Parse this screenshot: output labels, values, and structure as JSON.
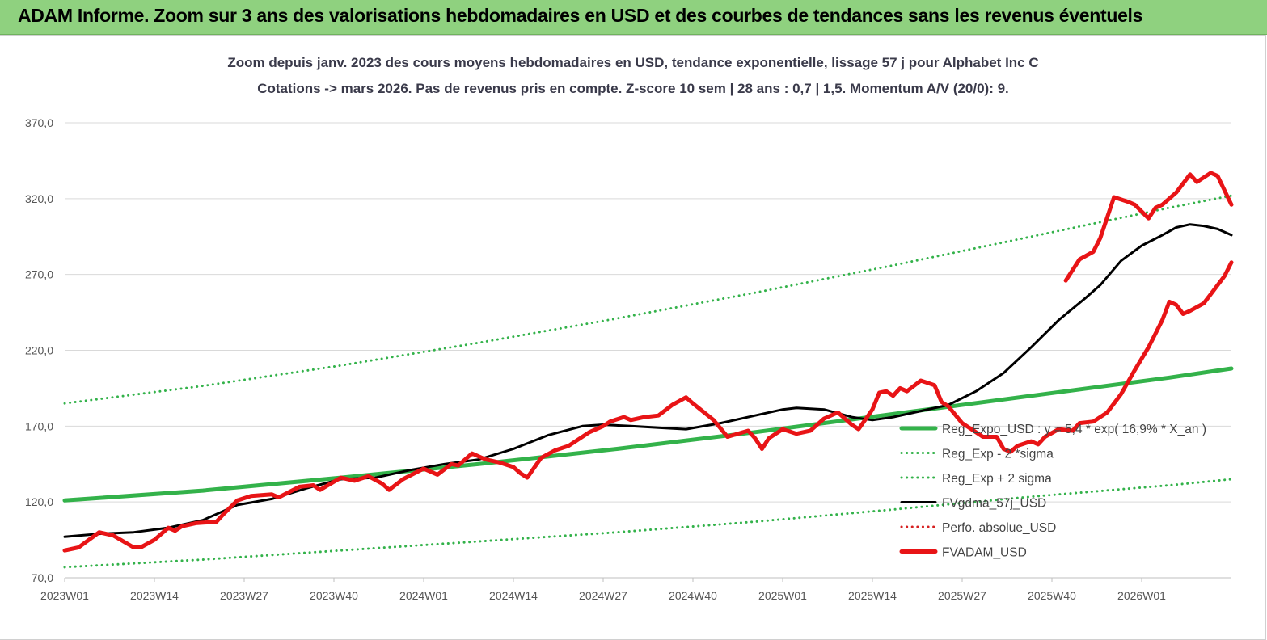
{
  "banner": {
    "title": "ADAM Informe. Zoom sur 3 ans des valorisations hebdomadaires en USD et des courbes de tendances sans les revenus éventuels"
  },
  "colors": {
    "banner_bg": "#8fd17f",
    "price": "#e81416",
    "smooth": "#000000",
    "trend": "#33b24a",
    "band": "#33b24a",
    "perf": "#d62020",
    "grid": "#d9d9d9"
  },
  "chart_data": {
    "type": "line",
    "subtitle_lines": [
      "Zoom depuis janv. 2023 des cours moyens hebdomadaires en USD, tendance exponentielle, lissage 57 j pour Alphabet Inc C",
      "Cotations -> mars 2026. Pas de revenus pris en compte. Z-score 10 sem | 28 ans : 0,7 | 1,5. Momentum A/V (20/0): 9."
    ],
    "y_ticks": [
      "70,0",
      "120,0",
      "170,0",
      "220,0",
      "270,0",
      "320,0",
      "370,0"
    ],
    "ylim": [
      70,
      370
    ],
    "x_ticks": [
      "2023W01",
      "2023W14",
      "2023W27",
      "2023W40",
      "2024W01",
      "2024W14",
      "2024W27",
      "2024W40",
      "2025W01",
      "2025W14",
      "2025W27",
      "2025W40",
      "2026W01"
    ],
    "x_tick_weeks": [
      0,
      13,
      26,
      39,
      52,
      65,
      78,
      91,
      104,
      117,
      130,
      143,
      156
    ],
    "x_range_weeks": [
      0,
      169
    ],
    "grid": "horizontal",
    "legend_position": "right",
    "legend": [
      {
        "label": "Reg_Expo_USD : y = 5,4 * exp( 16,9% *  X_an )",
        "style": "thick-solid",
        "color": "#33b24a"
      },
      {
        "label": "Reg_Exp - 2 *sigma",
        "style": "dotted",
        "color": "#33b24a"
      },
      {
        "label": "Reg_Exp + 2 sigma",
        "style": "dotted",
        "color": "#33b24a"
      },
      {
        "label": "FVgdma_57j_USD",
        "style": "solid",
        "color": "#000000"
      },
      {
        "label": "Perfo. absolue_USD",
        "style": "dotted",
        "color": "#d62020"
      },
      {
        "label": "FVADAM_USD",
        "style": "thick-solid",
        "color": "#e81416"
      }
    ],
    "series": [
      {
        "key": "trend",
        "style": "thick-solid",
        "color": "#33b24a",
        "points": [
          [
            0,
            121
          ],
          [
            20,
            127.5
          ],
          [
            40,
            136
          ],
          [
            60,
            145
          ],
          [
            80,
            155
          ],
          [
            100,
            166
          ],
          [
            120,
            178
          ],
          [
            140,
            190
          ],
          [
            160,
            202
          ],
          [
            169,
            208
          ]
        ]
      },
      {
        "key": "upper",
        "style": "dotted",
        "color": "#33b24a",
        "points": [
          [
            0,
            185
          ],
          [
            20,
            196.5
          ],
          [
            40,
            210
          ],
          [
            60,
            225
          ],
          [
            80,
            241
          ],
          [
            100,
            258
          ],
          [
            120,
            276
          ],
          [
            140,
            295
          ],
          [
            160,
            314
          ],
          [
            169,
            322
          ]
        ]
      },
      {
        "key": "lower",
        "style": "dotted",
        "color": "#33b24a",
        "points": [
          [
            0,
            77
          ],
          [
            20,
            82
          ],
          [
            40,
            88
          ],
          [
            60,
            94
          ],
          [
            80,
            100
          ],
          [
            100,
            107
          ],
          [
            120,
            115
          ],
          [
            140,
            123.5
          ],
          [
            160,
            131
          ],
          [
            169,
            135
          ]
        ]
      },
      {
        "key": "smooth",
        "style": "solid",
        "color": "#000000",
        "points": [
          [
            0,
            97
          ],
          [
            5,
            99
          ],
          [
            10,
            100
          ],
          [
            15,
            103
          ],
          [
            20,
            108
          ],
          [
            25,
            118
          ],
          [
            30,
            122
          ],
          [
            35,
            129
          ],
          [
            40,
            135
          ],
          [
            45,
            136
          ],
          [
            50,
            141
          ],
          [
            55,
            145
          ],
          [
            60,
            148
          ],
          [
            65,
            155
          ],
          [
            70,
            164
          ],
          [
            75,
            170
          ],
          [
            78,
            171
          ],
          [
            82,
            170
          ],
          [
            86,
            169
          ],
          [
            90,
            168
          ],
          [
            95,
            172
          ],
          [
            100,
            177
          ],
          [
            104,
            181
          ],
          [
            106,
            182
          ],
          [
            110,
            181
          ],
          [
            114,
            176
          ],
          [
            117,
            174
          ],
          [
            120,
            176
          ],
          [
            124,
            180
          ],
          [
            128,
            184
          ],
          [
            132,
            193
          ],
          [
            136,
            205
          ],
          [
            140,
            222
          ],
          [
            144,
            240
          ],
          [
            148,
            255
          ],
          [
            150,
            263
          ],
          [
            153,
            279
          ],
          [
            156,
            289
          ],
          [
            159,
            296
          ],
          [
            161,
            301
          ],
          [
            163,
            303
          ],
          [
            165,
            302
          ],
          [
            167,
            300
          ],
          [
            169,
            296
          ]
        ]
      },
      {
        "key": "price",
        "style": "thick-solid",
        "color": "#e81416",
        "points": [
          [
            0,
            88
          ],
          [
            2,
            90
          ],
          [
            5,
            100
          ],
          [
            7,
            98
          ],
          [
            10,
            90
          ],
          [
            11,
            90
          ],
          [
            13,
            95
          ],
          [
            15,
            103
          ],
          [
            16,
            101
          ],
          [
            17,
            104
          ],
          [
            19,
            106
          ],
          [
            22,
            107
          ],
          [
            23,
            112
          ],
          [
            25,
            121
          ],
          [
            27,
            124
          ],
          [
            30,
            125
          ],
          [
            31,
            123
          ],
          [
            34,
            130
          ],
          [
            36,
            131
          ],
          [
            37,
            128
          ],
          [
            40,
            136
          ],
          [
            42,
            134
          ],
          [
            44,
            137
          ],
          [
            46,
            132
          ],
          [
            47,
            128
          ],
          [
            49,
            135
          ],
          [
            52,
            142
          ],
          [
            54,
            138
          ],
          [
            56,
            145
          ],
          [
            57,
            144
          ],
          [
            59,
            152
          ],
          [
            61,
            148
          ],
          [
            63,
            146
          ],
          [
            65,
            143
          ],
          [
            66,
            139
          ],
          [
            67,
            136
          ],
          [
            69,
            149
          ],
          [
            71,
            154
          ],
          [
            73,
            157
          ],
          [
            76,
            166
          ],
          [
            78,
            170
          ],
          [
            79,
            173
          ],
          [
            81,
            176
          ],
          [
            82,
            174
          ],
          [
            84,
            176
          ],
          [
            86,
            177
          ],
          [
            88,
            184
          ],
          [
            90,
            189
          ],
          [
            91,
            185
          ],
          [
            94,
            174
          ],
          [
            96,
            163
          ],
          [
            99,
            167
          ],
          [
            100,
            162
          ],
          [
            101,
            155
          ],
          [
            102,
            162
          ],
          [
            104,
            168
          ],
          [
            106,
            165
          ],
          [
            108,
            167
          ],
          [
            110,
            175
          ],
          [
            112,
            179
          ],
          [
            114,
            171
          ],
          [
            115,
            168
          ],
          [
            117,
            181
          ],
          [
            118,
            192
          ],
          [
            119,
            193
          ],
          [
            120,
            190
          ],
          [
            121,
            195
          ],
          [
            122,
            193
          ],
          [
            124,
            200
          ],
          [
            126,
            197
          ],
          [
            127,
            186
          ],
          [
            128,
            183
          ],
          [
            130,
            172
          ],
          [
            131,
            169
          ],
          [
            133,
            163
          ],
          [
            135,
            163
          ],
          [
            136,
            155
          ],
          [
            137,
            153
          ],
          [
            138,
            157
          ],
          [
            140,
            160
          ],
          [
            141,
            158
          ],
          [
            142,
            163
          ],
          [
            144,
            168
          ],
          [
            146,
            167
          ],
          [
            147,
            172
          ],
          [
            149,
            173
          ],
          [
            151,
            179
          ],
          [
            153,
            191
          ],
          [
            155,
            207
          ],
          [
            157,
            222
          ],
          [
            159,
            240
          ],
          [
            160,
            252
          ],
          [
            161,
            250
          ],
          [
            162,
            244
          ],
          [
            163,
            246
          ],
          [
            165,
            251
          ],
          [
            166,
            257
          ],
          [
            168,
            269
          ],
          [
            169,
            278
          ]
        ]
      },
      {
        "key": "price_tail",
        "style": "thick-solid",
        "color": "#e81416",
        "points": [
          [
            145,
            266
          ],
          [
            147,
            280
          ],
          [
            149,
            285
          ],
          [
            150,
            294
          ],
          [
            152,
            321
          ],
          [
            154,
            318
          ],
          [
            155,
            316
          ],
          [
            157,
            307
          ],
          [
            158,
            314
          ],
          [
            159,
            316
          ],
          [
            161,
            324
          ],
          [
            163,
            336
          ],
          [
            164,
            331
          ],
          [
            166,
            337
          ],
          [
            167,
            335
          ],
          [
            169,
            316
          ]
        ]
      }
    ]
  }
}
